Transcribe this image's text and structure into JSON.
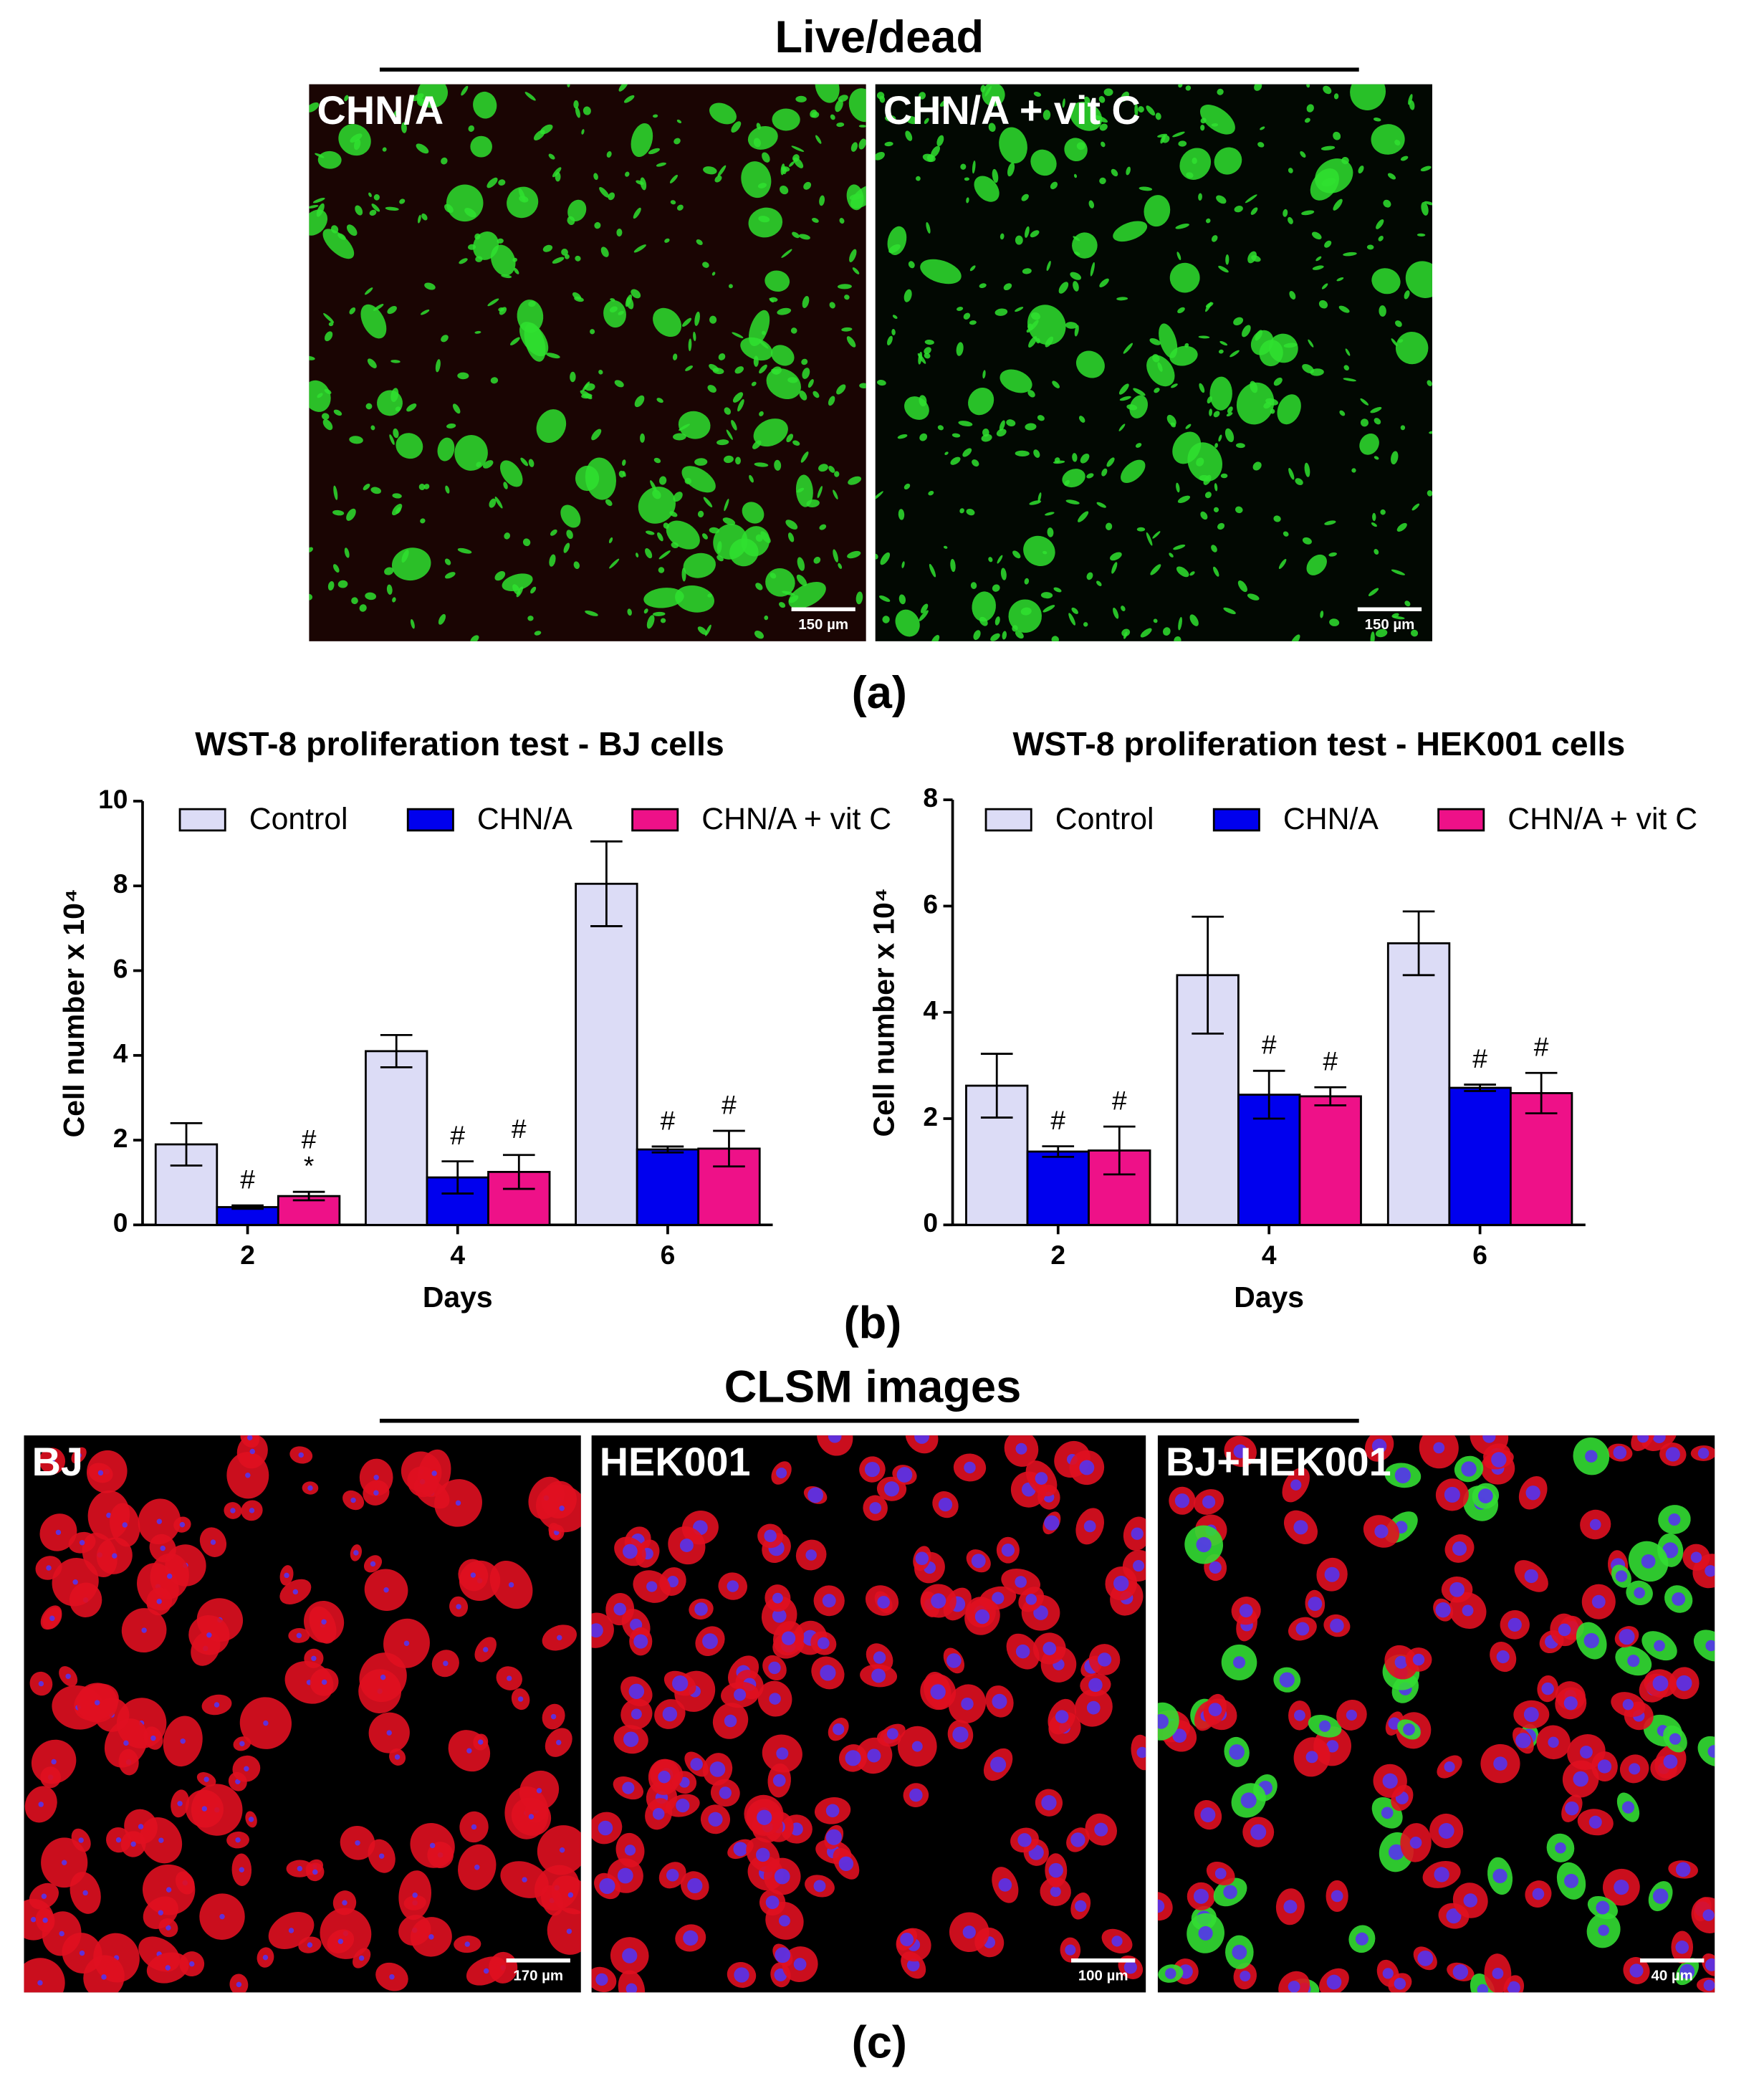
{
  "panel_a": {
    "title": "Live/dead",
    "caption": "(a)",
    "images": [
      {
        "label": "CHN/A",
        "scale": "150 µm"
      },
      {
        "label": "CHN/A + vit C",
        "scale": "150 µm"
      }
    ]
  },
  "panel_b": {
    "caption": "(b)"
  },
  "panel_c": {
    "title": "CLSM images",
    "caption": "(c)",
    "images": [
      {
        "label": "BJ",
        "scale": "170 µm"
      },
      {
        "label": "HEK001",
        "scale": "100 µm"
      },
      {
        "label": "BJ+HEK001",
        "scale": "40 µm"
      }
    ]
  },
  "chart_data": [
    {
      "type": "bar",
      "title": "WST-8 proliferation test - BJ cells",
      "xlabel": "Days",
      "ylabel": "Cell number x 10⁴",
      "categories": [
        "2",
        "4",
        "6"
      ],
      "ylim": [
        0,
        10
      ],
      "yticks": [
        0,
        2,
        4,
        6,
        8,
        10
      ],
      "legend": "top",
      "series": [
        {
          "name": "Control",
          "color": "#dcdcf6",
          "values": [
            1.9,
            4.1,
            8.05
          ],
          "errors": [
            0.5,
            0.38,
            1.0
          ]
        },
        {
          "name": "CHN/A",
          "color": "#0000ee",
          "values": [
            0.42,
            1.12,
            1.78
          ],
          "errors": [
            0.04,
            0.38,
            0.07
          ],
          "annotations": [
            [
              "#"
            ],
            [
              "#"
            ],
            [
              "#"
            ]
          ]
        },
        {
          "name": "CHN/A + vit C",
          "color": "#ee1188",
          "values": [
            0.68,
            1.25,
            1.8
          ],
          "errors": [
            0.1,
            0.4,
            0.42
          ],
          "annotations": [
            [
              "#",
              "*"
            ],
            [
              "#"
            ],
            [
              "#"
            ]
          ]
        }
      ]
    },
    {
      "type": "bar",
      "title": "WST-8 proliferation test - HEK001 cells",
      "xlabel": "Days",
      "ylabel": "Cell number x 10⁴",
      "categories": [
        "2",
        "4",
        "6"
      ],
      "ylim": [
        0,
        8
      ],
      "yticks": [
        0,
        2,
        4,
        6,
        8
      ],
      "legend": "top",
      "series": [
        {
          "name": "Control",
          "color": "#dcdcf6",
          "values": [
            2.62,
            4.7,
            5.3
          ],
          "errors": [
            0.6,
            1.1,
            0.6
          ]
        },
        {
          "name": "CHN/A",
          "color": "#0000ee",
          "values": [
            1.38,
            2.45,
            2.58
          ],
          "errors": [
            0.1,
            0.45,
            0.06
          ],
          "annotations": [
            [
              "#"
            ],
            [
              "#"
            ],
            [
              "#"
            ]
          ]
        },
        {
          "name": "CHN/A + vit C",
          "color": "#ee1188",
          "values": [
            1.4,
            2.42,
            2.48
          ],
          "errors": [
            0.45,
            0.17,
            0.38
          ],
          "annotations": [
            [
              "#"
            ],
            [
              "#"
            ],
            [
              "#"
            ]
          ]
        }
      ]
    }
  ]
}
